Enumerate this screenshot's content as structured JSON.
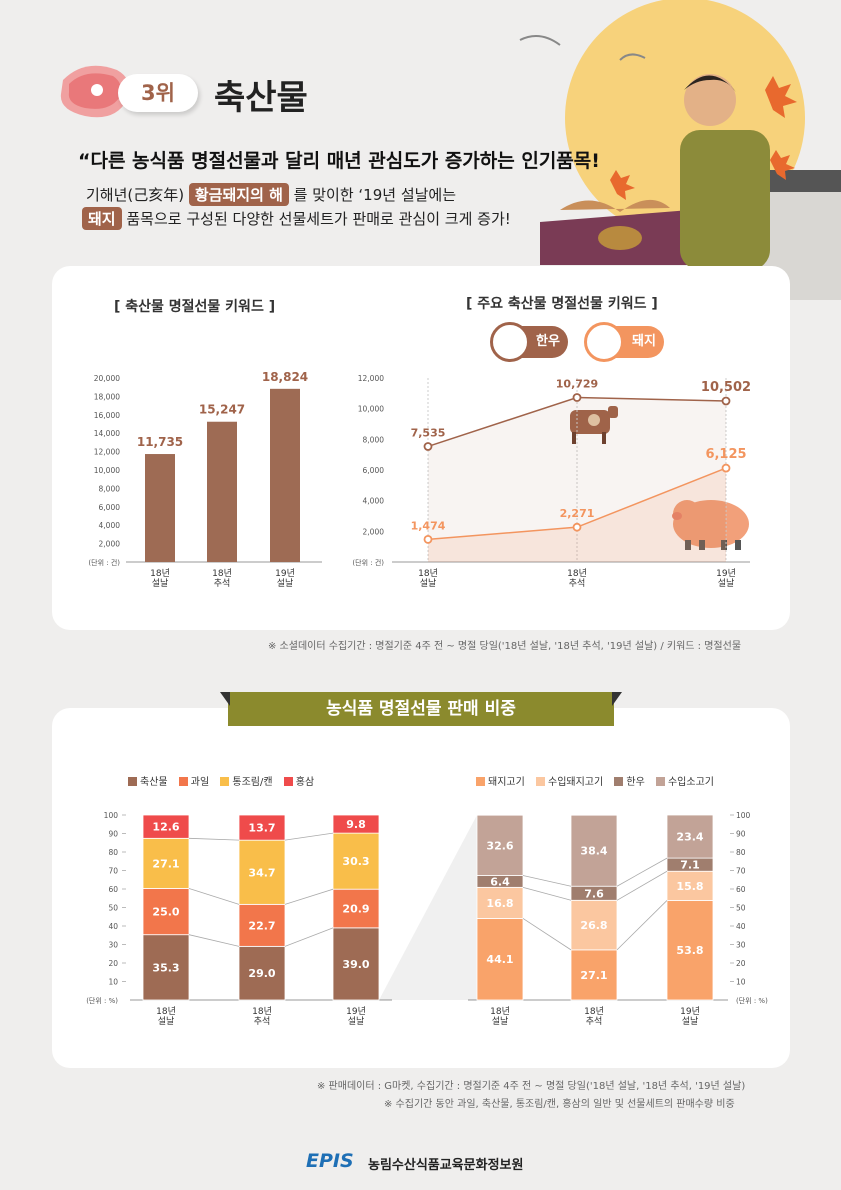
{
  "header": {
    "rank": "3위",
    "title": "축산물",
    "headline": "“다른 농식품 명절선물과 달리 매년 관심도가 증가하는 인기품목!",
    "line1_pre": "기해년(己亥年) ",
    "line1_hl": "황금돼지의 해",
    "line1_post": " 를 맞이한 ‘19년 설날에는",
    "line2_hl": "돼지",
    "line2_post": " 품목으로 구성된 다양한 선물세트가 판매로 관심이 크게 증가!"
  },
  "colors": {
    "brown": "#a0634a",
    "bar_brown": "#9e6b54",
    "line_orange": "#f3955f",
    "olive": "#8b8a2d",
    "fruit": "#f2764b",
    "canned": "#f9be4a",
    "ginseng": "#ef4b4b",
    "pork": "#f9a36a",
    "imp_pork": "#fbc7a0",
    "hanwoo": "#a07e6e",
    "imp_beef": "#c2a397"
  },
  "section1": {
    "left_title": "[ 축산물 명절선물 키워드 ]",
    "right_title": "[ 주요 축산물 명절선물 키워드 ]",
    "badge_hanwoo": "한우",
    "badge_pig": "돼지",
    "unit": "(단위 : 건)",
    "note": "※ 소셜데이터 수집기간 : 명절기준 4주 전 ~ 명절 당일('18년 설날, '18년 추석, '19년 설날) / 키워드 : 명절선물"
  },
  "section2": {
    "banner": "농식품 명절선물 판매 비중",
    "unit": "(단위 : %)",
    "note1": "※ 판매데이터 : G마켓, 수집기간 : 명절기준 4주 전 ~ 명절 당일('18년 설날, '18년 추석, '19년 설날)",
    "note2": "※ 수집기간 동안 과일, 축산물, 통조림/캔, 홍삼의 일반 및 선물세트의 판매수량 비중"
  },
  "footer": {
    "logo": "EPIS",
    "org": "농림수산식품교육문화정보원"
  },
  "chart_data": [
    {
      "type": "bar",
      "title": "[ 축산물 명절선물 키워드 ]",
      "categories": [
        "18년 설날",
        "18년 추석",
        "19년 설날"
      ],
      "values": [
        11735,
        15247,
        18824
      ],
      "value_labels": [
        "11,735",
        "15,247",
        "18,824"
      ],
      "ylabel": "(단위 : 건)",
      "ylim": [
        0,
        20000
      ],
      "yticks": [
        "20,000",
        "18,000",
        "16,000",
        "14,000",
        "12,000",
        "10,000",
        "8,000",
        "6,000",
        "4,000",
        "2,000"
      ]
    },
    {
      "type": "line",
      "title": "[ 주요 축산물 명절선물 키워드 ]",
      "categories": [
        "18년 설날",
        "18년 추석",
        "19년 설날"
      ],
      "series": [
        {
          "name": "한우",
          "values": [
            7535,
            10729,
            10502
          ],
          "labels": [
            "7,535",
            "10,729",
            "10,502"
          ]
        },
        {
          "name": "돼지",
          "values": [
            1474,
            2271,
            6125
          ],
          "labels": [
            "1,474",
            "2,271",
            "6,125"
          ]
        }
      ],
      "ylabel": "(단위 : 건)",
      "ylim": [
        0,
        12000
      ],
      "yticks": [
        "12,000",
        "10,000",
        "8,000",
        "6,000",
        "4,000",
        "2,000"
      ]
    },
    {
      "type": "bar",
      "stacked": true,
      "categories": [
        "18년 설날",
        "18년 추석",
        "19년 설날"
      ],
      "series": [
        {
          "name": "축산물",
          "values": [
            35.3,
            29.0,
            39.0
          ],
          "labels": [
            "35.3",
            "29.0",
            "39.0"
          ]
        },
        {
          "name": "과일",
          "values": [
            25.0,
            22.7,
            20.9
          ],
          "labels": [
            "25.0",
            "22.7",
            "20.9"
          ]
        },
        {
          "name": "통조림/캔",
          "values": [
            27.1,
            34.7,
            30.3
          ],
          "labels": [
            "27.1",
            "34.7",
            "30.3"
          ]
        },
        {
          "name": "홍삼",
          "values": [
            12.6,
            13.7,
            9.8
          ],
          "labels": [
            "12.6",
            "13.7",
            "9.8"
          ]
        }
      ],
      "ylabel": "(단위 : %)",
      "ylim": [
        0,
        100
      ],
      "yticks": [
        "100",
        "90",
        "80",
        "70",
        "60",
        "50",
        "40",
        "30",
        "20",
        "10"
      ]
    },
    {
      "type": "bar",
      "stacked": true,
      "categories": [
        "18년 설날",
        "18년 추석",
        "19년 설날"
      ],
      "series": [
        {
          "name": "돼지고기",
          "values": [
            44.1,
            27.1,
            53.8
          ],
          "labels": [
            "44.1",
            "27.1",
            "53.8"
          ]
        },
        {
          "name": "수입돼지고기",
          "values": [
            16.8,
            26.8,
            15.8
          ],
          "labels": [
            "16.8",
            "26.8",
            "15.8"
          ]
        },
        {
          "name": "한우",
          "values": [
            6.4,
            7.6,
            7.1
          ],
          "labels": [
            "6.4",
            "7.6",
            "7.1"
          ]
        },
        {
          "name": "수입소고기",
          "values": [
            32.6,
            38.4,
            23.4
          ],
          "labels": [
            "32.6",
            "38.4",
            "23.4"
          ]
        }
      ],
      "ylabel": "(단위 : %)",
      "ylim": [
        0,
        100
      ],
      "yticks": [
        "100",
        "90",
        "80",
        "70",
        "60",
        "50",
        "40",
        "30",
        "20",
        "10"
      ]
    }
  ]
}
